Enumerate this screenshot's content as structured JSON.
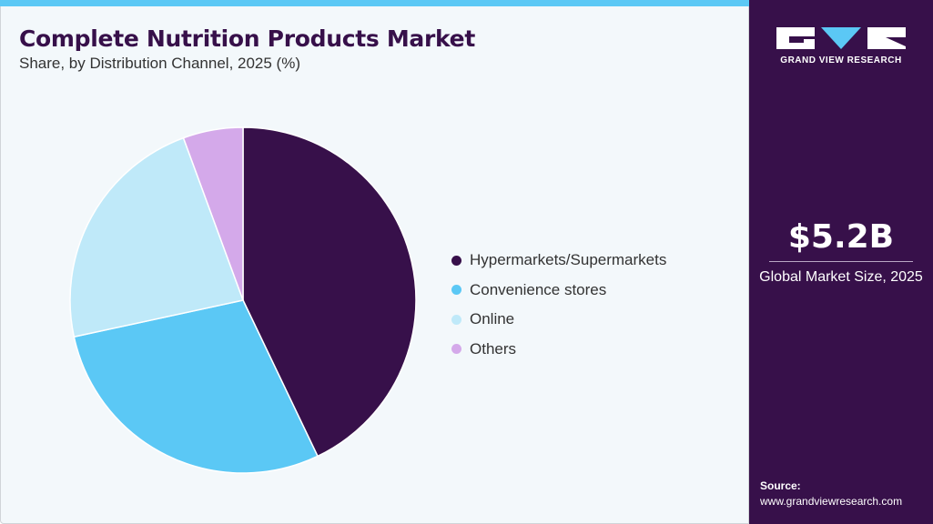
{
  "header": {
    "title": "Complete Nutrition Products Market",
    "subtitle": "Share, by Distribution Channel, 2025 (%)"
  },
  "sidebar": {
    "logo_text": "GRAND VIEW RESEARCH",
    "market_value": "$5.2B",
    "market_label": "Global Market Size, 2025",
    "source_label": "Source:",
    "source_url": "www.grandviewresearch.com"
  },
  "colors": {
    "brand": "#37104a",
    "accent": "#5bc8f5"
  },
  "chart_data": {
    "type": "pie",
    "title": "Complete Nutrition Products Market",
    "subtitle": "Share, by Distribution Channel, 2025 (%)",
    "legend_position": "right",
    "slices": [
      {
        "label": "Hypermarkets/Supermarkets",
        "value": 42.9,
        "color": "#37104a"
      },
      {
        "label": "Convenience stores",
        "value": 28.7,
        "color": "#5bc8f5"
      },
      {
        "label": "Online",
        "value": 22.8,
        "color": "#bfe9f9"
      },
      {
        "label": "Others",
        "value": 5.6,
        "color": "#d4a9ea"
      }
    ]
  }
}
